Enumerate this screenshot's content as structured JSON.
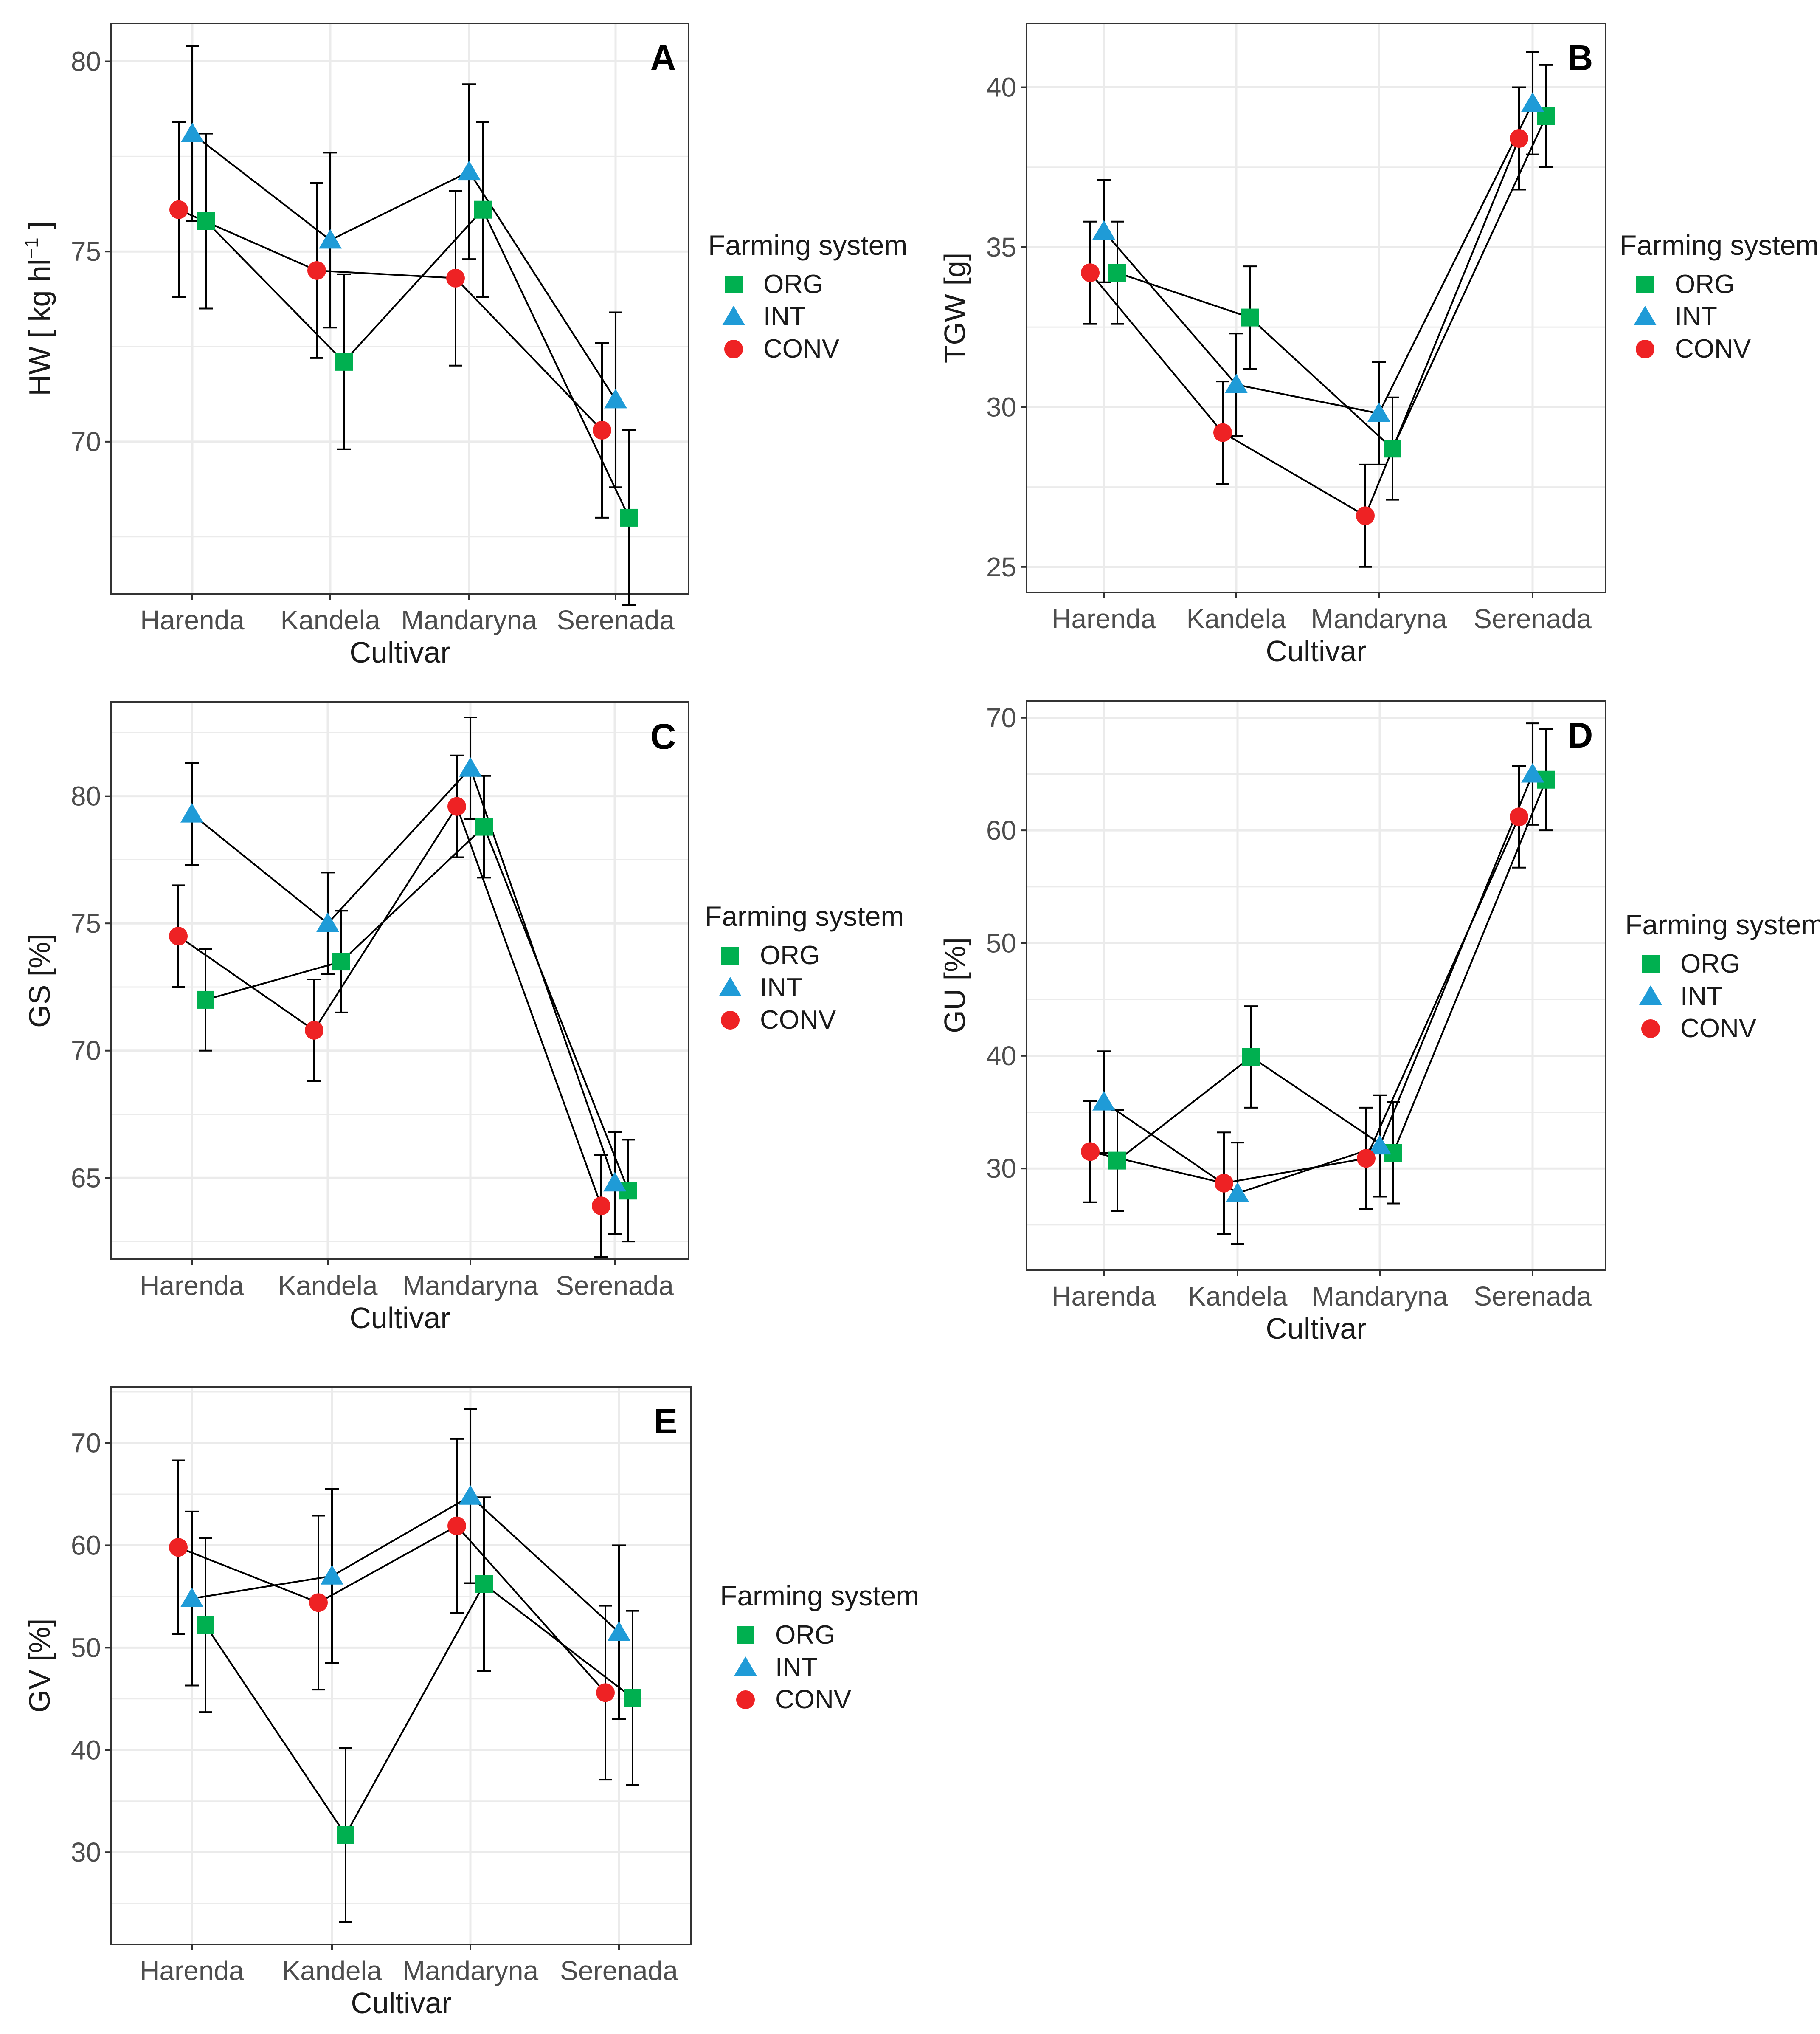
{
  "legend": {
    "title": "Farming system",
    "entries": [
      {
        "label": "ORG",
        "shape": "square",
        "color": "#00b050"
      },
      {
        "label": "INT",
        "shape": "triangle",
        "color": "#1f9bd7"
      },
      {
        "label": "CONV",
        "shape": "circle",
        "color": "#ee2224"
      }
    ]
  },
  "colors": {
    "ORG": "#00b050",
    "INT": "#1f9bd7",
    "CONV": "#ee2224",
    "line": "#000000",
    "grid": "#ebebeb",
    "frame": "#333333"
  },
  "chart_data": [
    {
      "panel": "A",
      "type": "line",
      "xlabel": "Cultivar",
      "ylabel": {
        "main": "HW [ kg hl",
        "sup": "−1",
        "end": " ]"
      },
      "categories": [
        "Harenda",
        "Kandela",
        "Mandaryna",
        "Serenada"
      ],
      "ylim": [
        66,
        81
      ],
      "yticks": [
        70,
        75,
        80
      ],
      "yticks_label": [
        "70",
        "75",
        "80"
      ],
      "series": [
        {
          "name": "ORG",
          "values": [
            75.8,
            72.1,
            76.1,
            68.0
          ],
          "err": [
            2.3,
            2.3,
            2.3,
            2.3
          ]
        },
        {
          "name": "INT",
          "values": [
            78.1,
            75.3,
            77.1,
            71.1
          ],
          "err": [
            2.3,
            2.3,
            2.3,
            2.3
          ]
        },
        {
          "name": "CONV",
          "values": [
            76.1,
            74.5,
            74.3,
            70.3
          ],
          "err": [
            2.3,
            2.3,
            2.3,
            2.3
          ]
        }
      ]
    },
    {
      "panel": "B",
      "type": "line",
      "xlabel": "Cultivar",
      "ylabel": {
        "main": "TGW [g]",
        "sup": "",
        "end": ""
      },
      "categories": [
        "Harenda",
        "Kandela",
        "Mandaryna",
        "Serenada"
      ],
      "ylim": [
        24.2,
        42
      ],
      "yticks": [
        25,
        30,
        35,
        40
      ],
      "yticks_label": [
        "25",
        "30",
        "35",
        "40"
      ],
      "series": [
        {
          "name": "ORG",
          "values": [
            34.2,
            32.8,
            28.7,
            39.1
          ],
          "err": [
            1.6,
            1.6,
            1.6,
            1.6
          ]
        },
        {
          "name": "INT",
          "values": [
            35.5,
            30.7,
            29.8,
            39.5
          ],
          "err": [
            1.6,
            1.6,
            1.6,
            1.6
          ]
        },
        {
          "name": "CONV",
          "values": [
            34.2,
            29.2,
            26.6,
            38.4
          ],
          "err": [
            1.6,
            1.6,
            1.6,
            1.6
          ]
        }
      ]
    },
    {
      "panel": "C",
      "type": "line",
      "xlabel": "Cultivar",
      "ylabel": {
        "main": "GS [%]",
        "sup": "",
        "end": ""
      },
      "categories": [
        "Harenda",
        "Kandela",
        "Mandaryna",
        "Serenada"
      ],
      "ylim": [
        61.8,
        83.7
      ],
      "yticks": [
        65,
        70,
        75,
        80
      ],
      "yticks_label": [
        "65",
        "70",
        "75",
        "80"
      ],
      "series": [
        {
          "name": "ORG",
          "values": [
            72.0,
            73.5,
            78.8,
            64.5
          ],
          "err": [
            2.0,
            2.0,
            2.0,
            2.0
          ]
        },
        {
          "name": "INT",
          "values": [
            79.3,
            75.0,
            81.1,
            64.8
          ],
          "err": [
            2.0,
            2.0,
            2.0,
            2.0
          ]
        },
        {
          "name": "CONV",
          "values": [
            74.5,
            70.8,
            79.6,
            63.9
          ],
          "err": [
            2.0,
            2.0,
            2.0,
            2.0
          ]
        }
      ]
    },
    {
      "panel": "D",
      "type": "line",
      "xlabel": "Cultivar",
      "ylabel": {
        "main": "GU [%]",
        "sup": "",
        "end": ""
      },
      "categories": [
        "Harenda",
        "Kandela",
        "Mandaryna",
        "Serenada"
      ],
      "ylim": [
        21,
        71.5
      ],
      "yticks": [
        30,
        40,
        50,
        60,
        70
      ],
      "yticks_label": [
        "30",
        "40",
        "50",
        "60",
        "70"
      ],
      "series": [
        {
          "name": "ORG",
          "values": [
            30.7,
            39.9,
            31.4,
            64.5
          ],
          "err": [
            4.5,
            4.5,
            4.5,
            4.5
          ]
        },
        {
          "name": "INT",
          "values": [
            35.9,
            27.8,
            32.0,
            65.0
          ],
          "err": [
            4.5,
            4.5,
            4.5,
            4.5
          ]
        },
        {
          "name": "CONV",
          "values": [
            31.5,
            28.7,
            30.9,
            61.2
          ],
          "err": [
            4.5,
            4.5,
            4.5,
            4.5
          ]
        }
      ]
    },
    {
      "panel": "E",
      "type": "line",
      "xlabel": "Cultivar",
      "ylabel": {
        "main": "GV [%]",
        "sup": "",
        "end": ""
      },
      "categories": [
        "Harenda",
        "Kandela",
        "Mandaryna",
        "Serenada"
      ],
      "ylim": [
        21,
        75.5
      ],
      "yticks": [
        30,
        40,
        50,
        60,
        70
      ],
      "yticks_label": [
        "30",
        "40",
        "50",
        "60",
        "70"
      ],
      "series": [
        {
          "name": "ORG",
          "values": [
            52.2,
            31.7,
            56.2,
            45.1
          ],
          "err": [
            8.5,
            8.5,
            8.5,
            8.5
          ]
        },
        {
          "name": "INT",
          "values": [
            54.8,
            57.0,
            64.8,
            51.5
          ],
          "err": [
            8.5,
            8.5,
            8.5,
            8.5
          ]
        },
        {
          "name": "CONV",
          "values": [
            59.8,
            54.4,
            61.9,
            45.6
          ],
          "err": [
            8.5,
            8.5,
            8.5,
            8.5
          ]
        }
      ]
    }
  ]
}
